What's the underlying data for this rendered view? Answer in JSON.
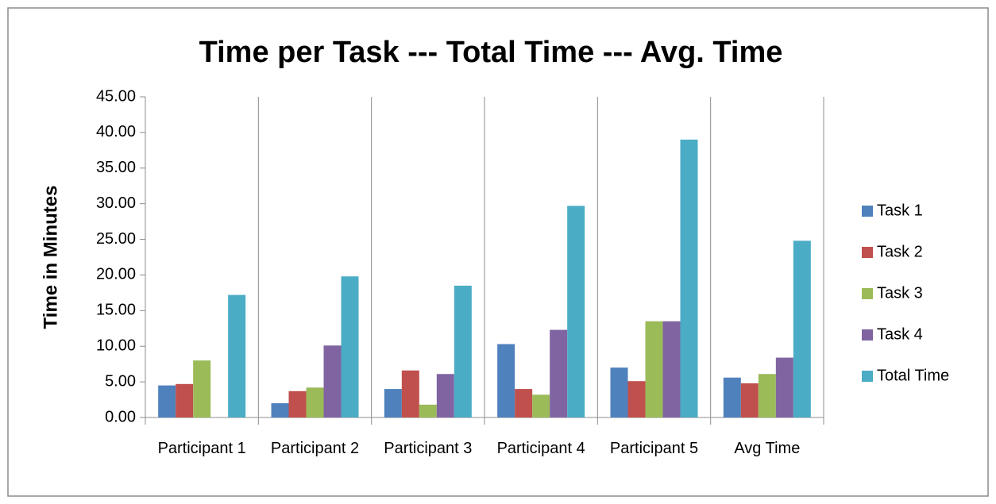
{
  "chart_data": {
    "type": "bar",
    "title": "Time per Task --- Total Time --- Avg. Time",
    "y_label": "Time in Minutes",
    "categories": [
      "Participant 1",
      "Participant 2",
      "Participant 3",
      "Participant 4",
      "Participant 5",
      "Avg Time"
    ],
    "series": [
      {
        "name": "Task 1",
        "color": "#4f81bd",
        "values": [
          4.5,
          2.0,
          4.0,
          10.3,
          7.0,
          5.6
        ]
      },
      {
        "name": "Task 2",
        "color": "#c0504d",
        "values": [
          4.7,
          3.7,
          6.6,
          4.0,
          5.1,
          4.8
        ]
      },
      {
        "name": "Task 3",
        "color": "#9bbb59",
        "values": [
          8.0,
          4.2,
          1.8,
          3.2,
          13.5,
          6.1
        ]
      },
      {
        "name": "Task 4",
        "color": "#8064a2",
        "values": [
          0,
          10.1,
          6.1,
          12.3,
          13.5,
          8.4
        ]
      },
      {
        "name": "Total Time",
        "color": "#4bacc6",
        "values": [
          17.2,
          19.8,
          18.5,
          29.7,
          39.0,
          24.8
        ]
      }
    ],
    "ylim": [
      0,
      45
    ],
    "yticks": [
      {
        "value": 0,
        "label": "0.00"
      },
      {
        "value": 5,
        "label": "5.00"
      },
      {
        "value": 10,
        "label": "10.00"
      },
      {
        "value": 15,
        "label": "15.00"
      },
      {
        "value": 20,
        "label": "20.00"
      },
      {
        "value": 25,
        "label": "25.00"
      },
      {
        "value": 30,
        "label": "30.00"
      },
      {
        "value": 35,
        "label": "35.00"
      },
      {
        "value": 40,
        "label": "40.00"
      },
      {
        "value": 45,
        "label": "45.00"
      }
    ],
    "legend": "right"
  }
}
